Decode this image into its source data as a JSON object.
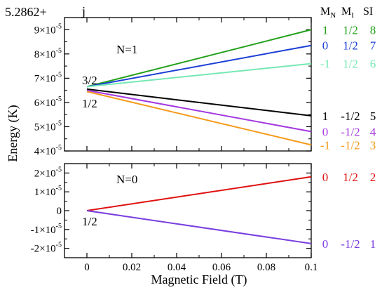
{
  "chart_data": {
    "type": "line",
    "offset_label": "5.2862+",
    "panel_letter": "j",
    "xlabel": "Magnetic Field (T)",
    "ylabel": "Energy (K)",
    "xlim": [
      -0.01,
      0.1
    ],
    "xticks": [
      "0",
      "0.02",
      "0.04",
      "0.06",
      "0.08",
      "0.1"
    ],
    "xtick_values": [
      0,
      0.02,
      0.04,
      0.06,
      0.08,
      0.1
    ],
    "columns": {
      "mn_base": "M",
      "mn_sub": "N",
      "mi_base": "M",
      "mi_sub": "I",
      "si": "SI"
    },
    "panels": [
      {
        "label": "N=1",
        "ylim": [
          4e-05,
          9.5e-05
        ],
        "yticks": [
          {
            "value": 4e-05,
            "mant": "4",
            "exp": "-5"
          },
          {
            "value": 5e-05,
            "mant": "5",
            "exp": "-5"
          },
          {
            "value": 6e-05,
            "mant": "6",
            "exp": "-5"
          },
          {
            "value": 7e-05,
            "mant": "7",
            "exp": "-5"
          },
          {
            "value": 8e-05,
            "mant": "8",
            "exp": "-5"
          },
          {
            "value": 9e-05,
            "mant": "9",
            "exp": "-5"
          }
        ],
        "annotations": [
          "3/2",
          "1/2"
        ],
        "series": [
          {
            "mn": "1",
            "mi": "1/2",
            "si": "8",
            "color": "#22a01a",
            "x": [
              0,
              0.1
            ],
            "y": [
              6.65e-05,
              9e-05
            ]
          },
          {
            "mn": "0",
            "mi": "1/2",
            "si": "7",
            "color": "#1c3fd6",
            "x": [
              0,
              0.1
            ],
            "y": [
              6.65e-05,
              8.35e-05
            ]
          },
          {
            "mn": "-1",
            "mi": "1/2",
            "si": "6",
            "color": "#76e8b4",
            "x": [
              0,
              0.1
            ],
            "y": [
              6.65e-05,
              7.6e-05
            ]
          },
          {
            "mn": "1",
            "mi": "-1/2",
            "si": "5",
            "color": "#000000",
            "x": [
              0,
              0.1
            ],
            "y": [
              6.55e-05,
              5.45e-05
            ]
          },
          {
            "mn": "0",
            "mi": "-1/2",
            "si": "4",
            "color": "#a33ae0",
            "x": [
              0,
              0.1
            ],
            "y": [
              6.5e-05,
              4.8e-05
            ]
          },
          {
            "mn": "-1",
            "mi": "-1/2",
            "si": "3",
            "color": "#f59a1c",
            "x": [
              0,
              0.1
            ],
            "y": [
              6.45e-05,
              4.25e-05
            ]
          }
        ]
      },
      {
        "label": "N=0",
        "ylim": [
          -2.5e-05,
          2.5e-05
        ],
        "yticks": [
          {
            "value": 2e-05,
            "mant": "2",
            "exp": "-5"
          },
          {
            "value": 1e-05,
            "mant": "1",
            "exp": "-5"
          },
          {
            "value": 0,
            "mant": "0",
            "exp": ""
          },
          {
            "value": -1e-05,
            "mant": "-1",
            "exp": "-5"
          },
          {
            "value": -2e-05,
            "mant": "-2",
            "exp": "-5"
          }
        ],
        "annotations": [
          "1/2"
        ],
        "series": [
          {
            "mn": "0",
            "mi": "1/2",
            "si": "2",
            "color": "#e01010",
            "x": [
              0,
              0.1
            ],
            "y": [
              0,
              1.8e-05
            ]
          },
          {
            "mn": "0",
            "mi": "-1/2",
            "si": "1",
            "color": "#7a3fe0",
            "x": [
              0,
              0.1
            ],
            "y": [
              0,
              -1.75e-05
            ]
          }
        ]
      }
    ]
  }
}
